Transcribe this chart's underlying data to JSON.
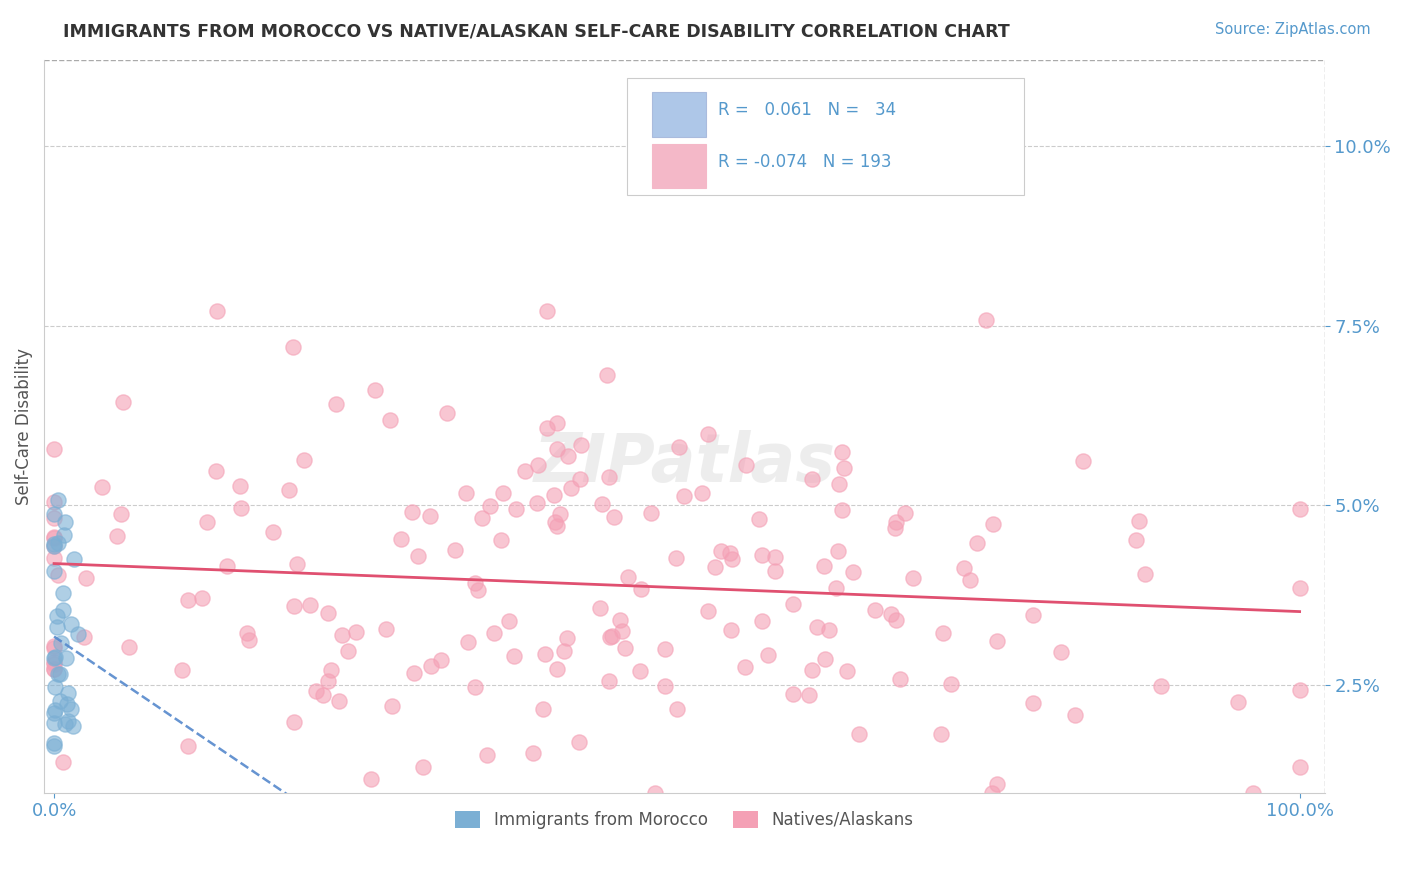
{
  "title": "IMMIGRANTS FROM MOROCCO VS NATIVE/ALASKAN SELF-CARE DISABILITY CORRELATION CHART",
  "source": "Source: ZipAtlas.com",
  "ylabel": "Self-Care Disability",
  "yticks": [
    0.025,
    0.05,
    0.075,
    0.1
  ],
  "ytick_labels": [
    "2.5%",
    "5.0%",
    "7.5%",
    "10.0%"
  ],
  "xlim": [
    -0.008,
    1.02
  ],
  "ylim": [
    0.01,
    0.112
  ],
  "R_blue": 0.061,
  "N_blue": 34,
  "R_pink": -0.074,
  "N_pink": 193,
  "blue_dot_color": "#7bafd4",
  "pink_dot_color": "#f4a0b5",
  "trend_blue_color": "#5588cc",
  "trend_pink_color": "#e05070",
  "legend_label_blue": "Immigrants from Morocco",
  "legend_label_pink": "Natives/Alaskans",
  "background_color": "#ffffff",
  "grid_color": "#cccccc",
  "tick_color": "#5599cc",
  "title_color": "#333333",
  "source_color": "#5599cc"
}
